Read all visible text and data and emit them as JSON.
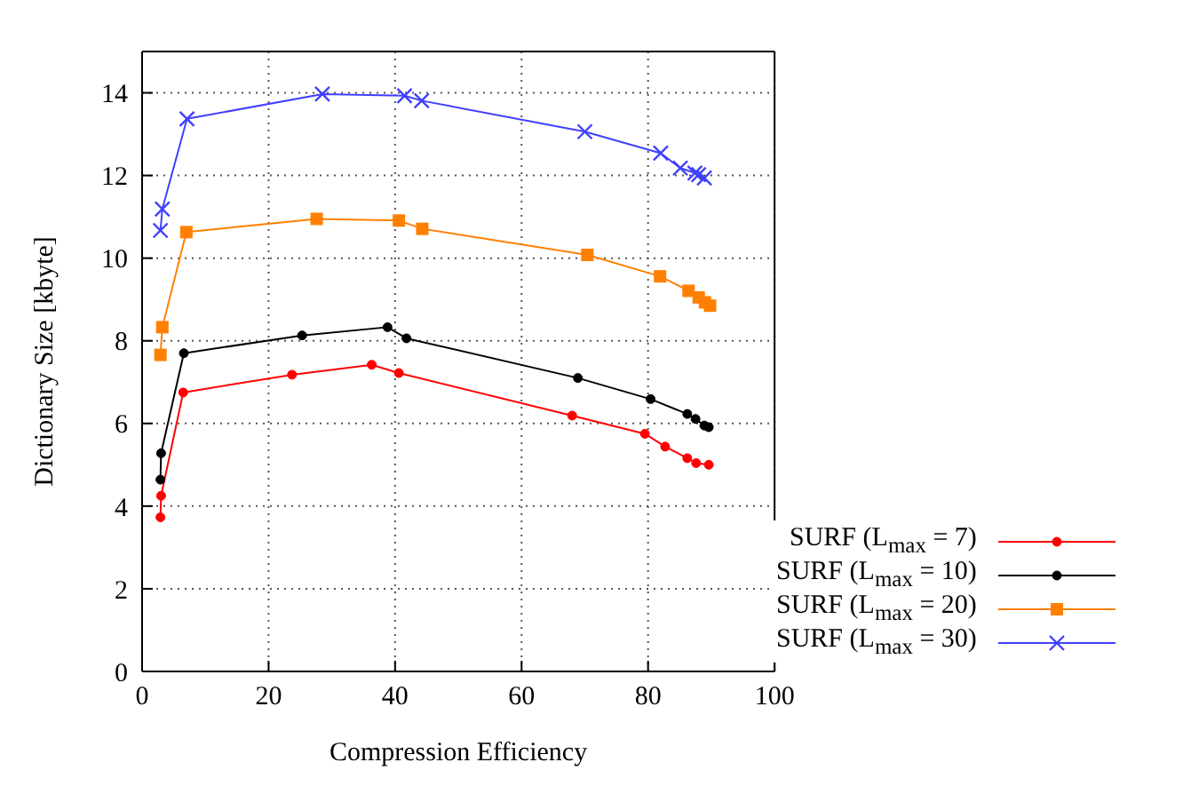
{
  "chart_data": {
    "type": "line",
    "xlabel": "Compression Efficiency",
    "ylabel": "Dictionary Size [kbyte]",
    "xlim": [
      0,
      100
    ],
    "xticks": [
      0,
      20,
      40,
      60,
      80,
      100
    ],
    "ylim": [
      0,
      15
    ],
    "yticks": [
      0,
      2,
      4,
      6,
      8,
      10,
      12,
      14
    ],
    "grid": true,
    "legend": "bottom right",
    "line_style": "solid",
    "series": [
      {
        "name": "SURF (L$_{max}$ = 7)",
        "color": "#ff0000",
        "marker": "circle",
        "x": [
          2.9,
          3.0,
          6.5,
          23.7,
          36.3,
          40.6,
          68.0,
          79.5,
          82.7,
          86.2,
          87.6,
          89.6
        ],
        "values": [
          3.73,
          4.25,
          6.75,
          7.18,
          7.42,
          7.22,
          6.19,
          5.75,
          5.44,
          5.16,
          5.04,
          5.0
        ]
      },
      {
        "name": "SURF (L$_{max}$ = 10)",
        "color": "#000000",
        "marker": "circle",
        "x": [
          2.9,
          3.0,
          6.6,
          25.3,
          38.8,
          41.8,
          68.9,
          80.4,
          86.2,
          87.5,
          88.9,
          89.6
        ],
        "values": [
          4.64,
          5.28,
          7.7,
          8.13,
          8.33,
          8.06,
          7.1,
          6.59,
          6.23,
          6.11,
          5.95,
          5.91
        ]
      },
      {
        "name": "SURF (L$_{max}$ = 20)",
        "color": "#ff8000",
        "marker": "square",
        "x": [
          2.9,
          3.2,
          7.0,
          27.6,
          40.6,
          44.3,
          70.4,
          81.9,
          86.4,
          88.0,
          89.0,
          89.8
        ],
        "values": [
          7.66,
          8.33,
          10.63,
          10.95,
          10.91,
          10.71,
          10.08,
          9.56,
          9.21,
          9.05,
          8.93,
          8.85
        ]
      },
      {
        "name": "SURF (L$_{max}$ = 30)",
        "color": "#4040ff",
        "marker": "cross",
        "x": [
          2.9,
          3.2,
          7.1,
          28.5,
          41.5,
          44.2,
          70.0,
          82.0,
          85.1,
          87.4,
          88.0,
          88.9
        ],
        "values": [
          10.67,
          11.19,
          13.37,
          13.97,
          13.93,
          13.81,
          13.06,
          12.54,
          12.18,
          12.06,
          12.02,
          11.94
        ]
      }
    ]
  }
}
